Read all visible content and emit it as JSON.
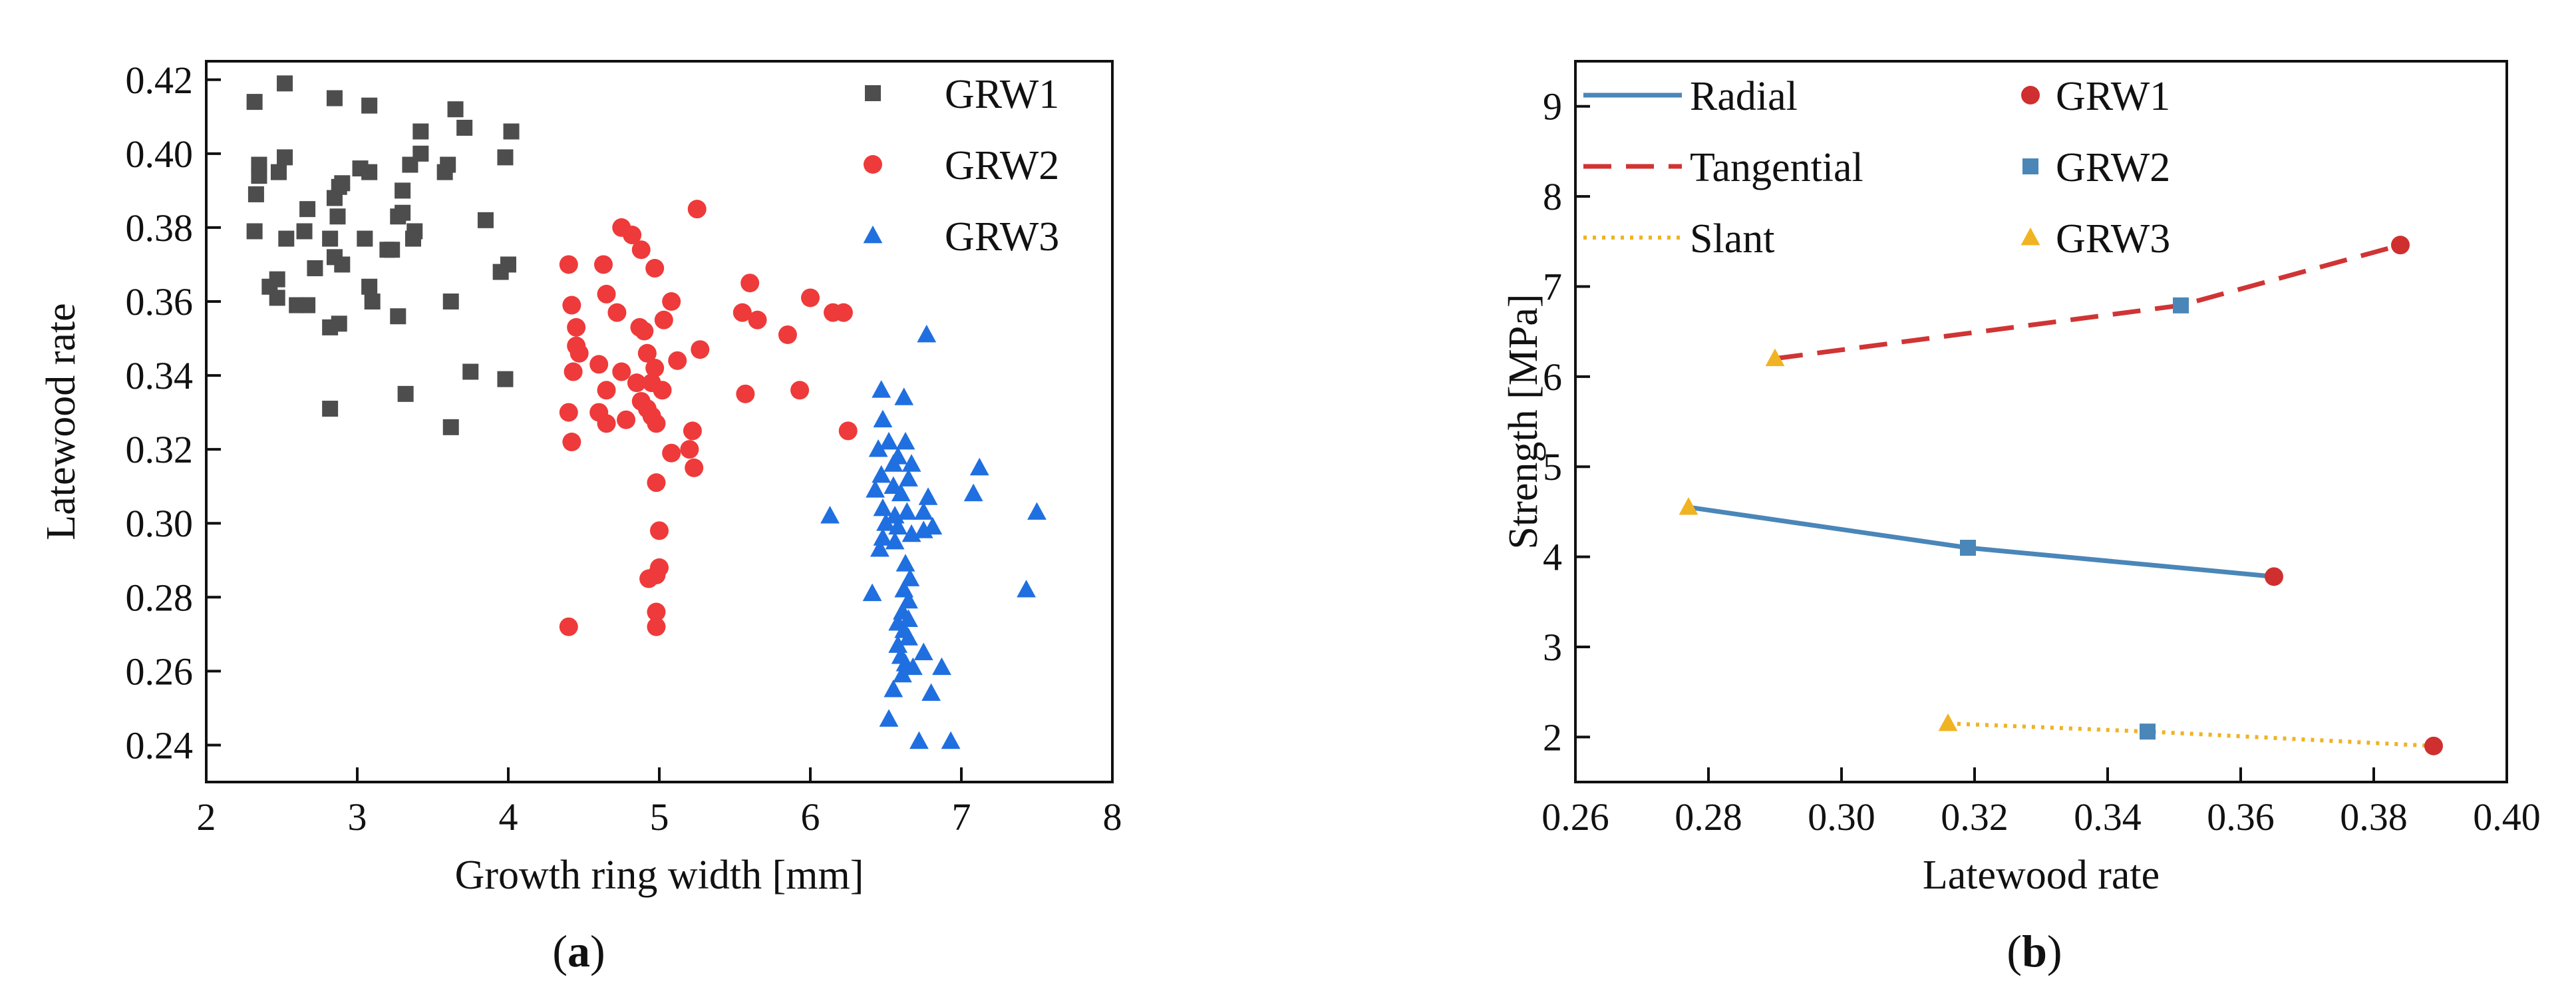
{
  "chart_data": [
    {
      "type": "scatter",
      "panel_label": "(a)",
      "panel_label_letter": "a",
      "xlabel": "Growth ring width [mm]",
      "ylabel": "Latewood rate",
      "xlim": [
        2,
        8
      ],
      "ylim": [
        0.23,
        0.425
      ],
      "xticks": [
        "2",
        "3",
        "4",
        "5",
        "6",
        "7",
        "8"
      ],
      "yticks": [
        "0.24",
        "0.26",
        "0.28",
        "0.30",
        "0.32",
        "0.34",
        "0.36",
        "0.38",
        "0.40",
        "0.42"
      ],
      "legend": "top-right",
      "series": [
        {
          "name": "GRW1",
          "marker": "square",
          "color": "#4d4d4d",
          "points": [
            [
              2.32,
              0.414
            ],
            [
              2.52,
              0.419
            ],
            [
              2.85,
              0.415
            ],
            [
              3.08,
              0.413
            ],
            [
              3.65,
              0.412
            ],
            [
              3.71,
              0.407
            ],
            [
              4.02,
              0.406
            ],
            [
              3.42,
              0.406
            ],
            [
              2.35,
              0.397
            ],
            [
              2.52,
              0.399
            ],
            [
              2.35,
              0.394
            ],
            [
              2.48,
              0.395
            ],
            [
              2.88,
              0.391
            ],
            [
              3.02,
              0.396
            ],
            [
              3.08,
              0.395
            ],
            [
              3.35,
              0.397
            ],
            [
              3.42,
              0.4
            ],
            [
              3.6,
              0.397
            ],
            [
              3.58,
              0.395
            ],
            [
              3.98,
              0.399
            ],
            [
              2.85,
              0.388
            ],
            [
              2.9,
              0.392
            ],
            [
              2.33,
              0.389
            ],
            [
              3.3,
              0.39
            ],
            [
              2.67,
              0.385
            ],
            [
              2.87,
              0.383
            ],
            [
              3.27,
              0.383
            ],
            [
              3.3,
              0.384
            ],
            [
              3.38,
              0.379
            ],
            [
              3.37,
              0.377
            ],
            [
              3.85,
              0.382
            ],
            [
              2.32,
              0.379
            ],
            [
              2.53,
              0.377
            ],
            [
              2.65,
              0.379
            ],
            [
              2.82,
              0.377
            ],
            [
              3.05,
              0.377
            ],
            [
              3.2,
              0.374
            ],
            [
              3.23,
              0.374
            ],
            [
              2.85,
              0.372
            ],
            [
              2.9,
              0.37
            ],
            [
              2.72,
              0.369
            ],
            [
              2.47,
              0.366
            ],
            [
              3.08,
              0.364
            ],
            [
              2.42,
              0.364
            ],
            [
              2.47,
              0.361
            ],
            [
              2.6,
              0.359
            ],
            [
              2.67,
              0.359
            ],
            [
              3.1,
              0.36
            ],
            [
              3.62,
              0.36
            ],
            [
              4.0,
              0.37
            ],
            [
              3.95,
              0.368
            ],
            [
              2.82,
              0.353
            ],
            [
              2.88,
              0.354
            ],
            [
              3.27,
              0.356
            ],
            [
              3.32,
              0.335
            ],
            [
              3.75,
              0.341
            ],
            [
              3.98,
              0.339
            ],
            [
              2.82,
              0.331
            ],
            [
              3.62,
              0.326
            ]
          ]
        },
        {
          "name": "GRW2",
          "marker": "circle",
          "color": "#ee3a3a",
          "points": [
            [
              5.25,
              0.385
            ],
            [
              4.75,
              0.38
            ],
            [
              4.82,
              0.378
            ],
            [
              4.88,
              0.374
            ],
            [
              4.4,
              0.37
            ],
            [
              4.63,
              0.37
            ],
            [
              4.97,
              0.369
            ],
            [
              4.42,
              0.359
            ],
            [
              4.65,
              0.362
            ],
            [
              5.08,
              0.36
            ],
            [
              5.6,
              0.365
            ],
            [
              6.0,
              0.361
            ],
            [
              4.45,
              0.353
            ],
            [
              4.72,
              0.357
            ],
            [
              4.87,
              0.353
            ],
            [
              4.9,
              0.352
            ],
            [
              5.03,
              0.355
            ],
            [
              5.55,
              0.357
            ],
            [
              5.65,
              0.355
            ],
            [
              5.85,
              0.351
            ],
            [
              6.15,
              0.357
            ],
            [
              6.22,
              0.357
            ],
            [
              4.45,
              0.348
            ],
            [
              4.47,
              0.346
            ],
            [
              4.6,
              0.343
            ],
            [
              4.75,
              0.341
            ],
            [
              4.92,
              0.346
            ],
            [
              4.97,
              0.342
            ],
            [
              5.12,
              0.344
            ],
            [
              5.27,
              0.347
            ],
            [
              4.43,
              0.341
            ],
            [
              4.65,
              0.336
            ],
            [
              4.85,
              0.338
            ],
            [
              4.95,
              0.338
            ],
            [
              5.02,
              0.336
            ],
            [
              4.88,
              0.333
            ],
            [
              4.4,
              0.33
            ],
            [
              4.6,
              0.33
            ],
            [
              4.65,
              0.327
            ],
            [
              4.78,
              0.328
            ],
            [
              4.92,
              0.331
            ],
            [
              4.95,
              0.329
            ],
            [
              4.98,
              0.327
            ],
            [
              5.22,
              0.325
            ],
            [
              5.2,
              0.32
            ],
            [
              5.08,
              0.319
            ],
            [
              5.23,
              0.315
            ],
            [
              5.57,
              0.335
            ],
            [
              5.93,
              0.336
            ],
            [
              6.25,
              0.325
            ],
            [
              4.42,
              0.322
            ],
            [
              4.98,
              0.311
            ],
            [
              5.0,
              0.298
            ],
            [
              5.0,
              0.288
            ],
            [
              4.98,
              0.286
            ],
            [
              4.93,
              0.285
            ],
            [
              4.98,
              0.276
            ],
            [
              4.98,
              0.272
            ],
            [
              4.4,
              0.272
            ]
          ]
        },
        {
          "name": "GRW3",
          "marker": "triangle",
          "color": "#1f6fe0",
          "points": [
            [
              6.77,
              0.351
            ],
            [
              6.47,
              0.336
            ],
            [
              6.62,
              0.334
            ],
            [
              6.63,
              0.322
            ],
            [
              6.48,
              0.328
            ],
            [
              6.52,
              0.322
            ],
            [
              6.45,
              0.32
            ],
            [
              6.58,
              0.318
            ],
            [
              6.55,
              0.316
            ],
            [
              6.67,
              0.316
            ],
            [
              7.12,
              0.315
            ],
            [
              6.47,
              0.313
            ],
            [
              6.55,
              0.31
            ],
            [
              6.65,
              0.312
            ],
            [
              6.43,
              0.309
            ],
            [
              6.6,
              0.308
            ],
            [
              6.78,
              0.307
            ],
            [
              7.08,
              0.308
            ],
            [
              6.48,
              0.304
            ],
            [
              6.56,
              0.302
            ],
            [
              6.64,
              0.303
            ],
            [
              6.75,
              0.303
            ],
            [
              6.13,
              0.302
            ],
            [
              7.5,
              0.303
            ],
            [
              6.5,
              0.3
            ],
            [
              6.58,
              0.299
            ],
            [
              6.67,
              0.297
            ],
            [
              6.75,
              0.298
            ],
            [
              6.81,
              0.299
            ],
            [
              6.48,
              0.296
            ],
            [
              6.56,
              0.295
            ],
            [
              6.46,
              0.293
            ],
            [
              6.63,
              0.289
            ],
            [
              6.66,
              0.285
            ],
            [
              6.41,
              0.281
            ],
            [
              6.62,
              0.282
            ],
            [
              6.65,
              0.279
            ],
            [
              6.61,
              0.276
            ],
            [
              6.65,
              0.274
            ],
            [
              6.58,
              0.273
            ],
            [
              6.62,
              0.271
            ],
            [
              6.65,
              0.269
            ],
            [
              6.58,
              0.267
            ],
            [
              6.6,
              0.264
            ],
            [
              6.75,
              0.265
            ],
            [
              6.63,
              0.262
            ],
            [
              6.68,
              0.261
            ],
            [
              6.61,
              0.259
            ],
            [
              6.87,
              0.261
            ],
            [
              6.55,
              0.255
            ],
            [
              6.8,
              0.254
            ],
            [
              6.52,
              0.247
            ],
            [
              6.72,
              0.241
            ],
            [
              6.93,
              0.241
            ],
            [
              7.43,
              0.282
            ]
          ]
        }
      ]
    },
    {
      "type": "line",
      "panel_label": "(b)",
      "panel_label_letter": "b",
      "xlabel": "Latewood rate",
      "ylabel": "Strength [MPa]",
      "xlim": [
        0.26,
        0.4
      ],
      "ylim": [
        1.5,
        9.5
      ],
      "xticks": [
        "0.26",
        "0.28",
        "0.30",
        "0.32",
        "0.34",
        "0.36",
        "0.38",
        "0.40"
      ],
      "yticks": [
        "2",
        "3",
        "4",
        "5",
        "6",
        "7",
        "8",
        "9"
      ],
      "legend": "top-left",
      "lines": [
        {
          "name": "Radial",
          "style": "solid",
          "color": "#4a86b8",
          "points": [
            [
              0.277,
              4.55
            ],
            [
              0.319,
              4.1
            ],
            [
              0.365,
              3.78
            ]
          ]
        },
        {
          "name": "Tangential",
          "style": "dashed",
          "color": "#d03434",
          "points": [
            [
              0.29,
              6.2
            ],
            [
              0.351,
              6.79
            ],
            [
              0.384,
              7.46
            ]
          ]
        },
        {
          "name": "Slant",
          "style": "dotted",
          "color": "#f0b323",
          "points": [
            [
              0.316,
              2.15
            ],
            [
              0.346,
              2.06
            ],
            [
              0.389,
              1.9
            ]
          ]
        }
      ],
      "marker_series": [
        {
          "name": "GRW1",
          "marker": "circle",
          "color": "#d02f2f",
          "points": [
            [
              0.365,
              3.78
            ],
            [
              0.384,
              7.46
            ],
            [
              0.389,
              1.9
            ]
          ]
        },
        {
          "name": "GRW2",
          "marker": "square",
          "color": "#4a86b8",
          "points": [
            [
              0.319,
              4.1
            ],
            [
              0.351,
              6.79
            ],
            [
              0.346,
              2.06
            ]
          ]
        },
        {
          "name": "GRW3",
          "marker": "triangle",
          "color": "#f0b323",
          "points": [
            [
              0.277,
              4.55
            ],
            [
              0.29,
              6.2
            ],
            [
              0.316,
              2.15
            ]
          ]
        }
      ]
    }
  ]
}
